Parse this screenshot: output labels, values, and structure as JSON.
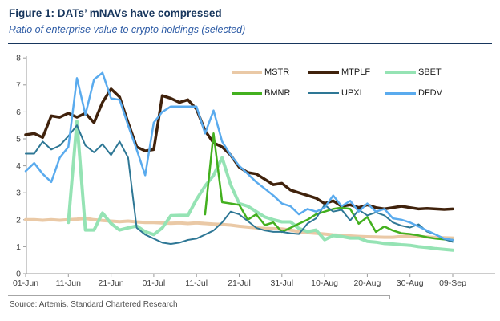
{
  "figure": {
    "title": "Figure 1: DATs’ mNAVs have compressed",
    "subtitle": "Ratio of enterprise value to crypto holdings (selected)",
    "source": "Source: Artemis, Standard Chartered Research",
    "title_color": "#17365d",
    "subtitle_color": "#2e5ca6",
    "divider_color": "#17365d"
  },
  "chart_data": {
    "type": "line",
    "title": "",
    "xlabel": "",
    "ylabel": "",
    "grid": false,
    "legend_position": "top-right",
    "ylim": [
      0,
      8
    ],
    "y_ticks": [
      0,
      1,
      2,
      3,
      4,
      5,
      6,
      7,
      8
    ],
    "x_tick_labels": [
      "01-Jun",
      "11-Jun",
      "21-Jun",
      "01-Jul",
      "11-Jul",
      "21-Jul",
      "31-Jul",
      "10-Aug",
      "20-Aug",
      "30-Aug",
      "09-Sep"
    ],
    "x_tick_interval_days": 10,
    "sample_step_days": 2,
    "axis_color": "#9a9a9a",
    "tick_label_color": "#404040",
    "legend_rows": [
      [
        "MSTR",
        "MTPLF",
        "SBET"
      ],
      [
        "BMNR",
        "UPXI",
        "DFDV"
      ]
    ],
    "series": [
      {
        "name": "MSTR",
        "color": "#eac9a6",
        "width": 4,
        "values": [
          2.0,
          2.0,
          1.98,
          2.0,
          1.98,
          2.0,
          2.02,
          2.05,
          2.0,
          1.97,
          1.95,
          1.93,
          1.95,
          1.92,
          1.9,
          1.9,
          1.88,
          1.87,
          1.88,
          1.86,
          1.88,
          1.86,
          1.84,
          1.82,
          1.8,
          1.76,
          1.73,
          1.7,
          1.68,
          1.67,
          1.66,
          1.62,
          1.56,
          1.52,
          1.5,
          1.47,
          1.44,
          1.42,
          1.4,
          1.38,
          1.37,
          1.36,
          1.35,
          1.35,
          1.38,
          1.4,
          1.38,
          1.36,
          1.34,
          1.33,
          1.32
        ]
      },
      {
        "name": "SBET",
        "color": "#95e3b4",
        "width": 4,
        "values": [
          null,
          null,
          null,
          null,
          null,
          1.9,
          5.65,
          1.62,
          1.62,
          2.25,
          1.86,
          1.62,
          1.7,
          1.77,
          1.56,
          1.45,
          1.7,
          2.15,
          2.16,
          2.16,
          2.75,
          3.25,
          3.65,
          4.3,
          3.3,
          2.6,
          2.5,
          2.3,
          2.1,
          2.0,
          1.92,
          1.92,
          1.68,
          1.56,
          1.62,
          1.26,
          1.41,
          1.38,
          1.32,
          1.32,
          1.2,
          1.17,
          1.12,
          1.1,
          1.07,
          1.05,
          1.0,
          0.97,
          0.93,
          0.9,
          0.87
        ]
      },
      {
        "name": "MTPLF",
        "color": "#40220c",
        "width": 3.5,
        "values": [
          5.15,
          5.2,
          5.05,
          5.85,
          5.8,
          5.95,
          5.8,
          5.95,
          5.6,
          6.35,
          6.85,
          6.55,
          5.6,
          4.7,
          4.55,
          4.6,
          6.6,
          6.5,
          6.35,
          6.45,
          6.1,
          5.3,
          4.85,
          4.7,
          4.4,
          3.95,
          3.75,
          3.7,
          3.5,
          3.3,
          3.35,
          3.1,
          3.0,
          2.9,
          2.8,
          2.6,
          2.7,
          2.5,
          2.55,
          2.45,
          2.55,
          2.45,
          2.4,
          2.45,
          2.5,
          2.45,
          2.4,
          2.42,
          2.4,
          2.38,
          2.4
        ]
      },
      {
        "name": "BMNR",
        "color": "#43b01f",
        "width": 2.5,
        "values": [
          null,
          null,
          null,
          null,
          null,
          null,
          null,
          null,
          null,
          null,
          null,
          null,
          null,
          null,
          null,
          null,
          null,
          null,
          null,
          null,
          null,
          2.2,
          5.2,
          2.65,
          2.6,
          2.55,
          2.0,
          2.2,
          1.8,
          1.9,
          1.55,
          1.7,
          1.85,
          2.0,
          2.2,
          2.3,
          2.4,
          2.45,
          2.4,
          1.85,
          2.1,
          1.55,
          1.75,
          1.6,
          1.5,
          1.47,
          1.42,
          1.35,
          1.3,
          1.27,
          1.25
        ]
      },
      {
        "name": "UPXI",
        "color": "#2e7795",
        "width": 2,
        "values": [
          4.45,
          4.45,
          4.9,
          4.6,
          4.75,
          5.1,
          5.5,
          4.75,
          4.5,
          4.8,
          4.4,
          4.9,
          4.3,
          1.7,
          1.45,
          1.3,
          1.15,
          1.1,
          1.15,
          1.25,
          1.3,
          1.45,
          1.6,
          1.9,
          2.3,
          2.2,
          1.95,
          1.7,
          1.6,
          1.55,
          1.55,
          1.5,
          1.47,
          1.86,
          2.05,
          2.55,
          2.3,
          2.37,
          1.97,
          2.37,
          2.16,
          2.27,
          2.16,
          1.9,
          1.78,
          1.71,
          1.83,
          1.56,
          1.45,
          1.28,
          1.18
        ]
      },
      {
        "name": "DFDV",
        "color": "#5aabee",
        "width": 2.5,
        "values": [
          3.8,
          4.1,
          3.7,
          3.4,
          4.3,
          4.7,
          7.25,
          5.9,
          7.2,
          7.45,
          6.5,
          6.45,
          5.5,
          4.6,
          3.65,
          5.6,
          6.0,
          6.2,
          6.2,
          6.2,
          6.2,
          5.2,
          6.05,
          4.9,
          4.4,
          4.0,
          3.7,
          3.4,
          3.15,
          2.9,
          2.6,
          2.5,
          2.2,
          2.4,
          2.3,
          2.45,
          2.9,
          2.5,
          2.7,
          2.3,
          2.6,
          2.3,
          2.4,
          2.05,
          2.0,
          1.9,
          1.75,
          1.6,
          1.45,
          1.3,
          1.25
        ]
      }
    ]
  }
}
